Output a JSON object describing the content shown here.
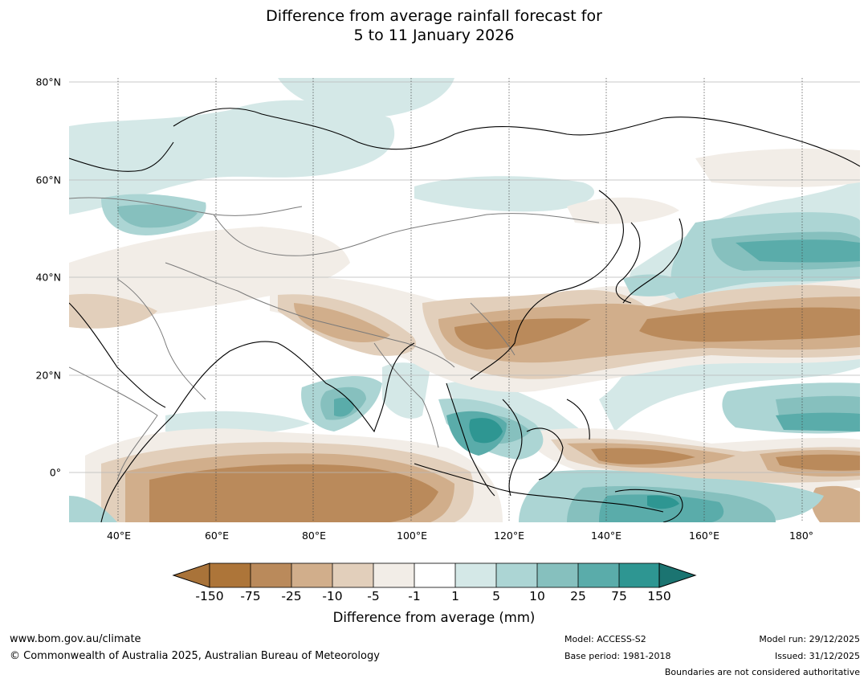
{
  "title": {
    "line1": "Difference from average rainfall forecast for",
    "line2": "5 to 11 January 2026"
  },
  "map": {
    "lon_range": [
      30,
      191
    ],
    "lat_range": [
      -10,
      81
    ],
    "lat_labels": [
      "80°N",
      "60°N",
      "40°N",
      "20°N",
      "0°"
    ],
    "lon_labels": [
      "40°E",
      "60°E",
      "80°E",
      "100°E",
      "120°E",
      "140°E",
      "160°E",
      "180°"
    ],
    "features": [
      {
        "category": -75,
        "label": "dry-equatorial-indian-ocean"
      },
      {
        "category": -75,
        "label": "dry-southern-china"
      },
      {
        "category": -75,
        "label": "dry-north-pacific-band"
      },
      {
        "category": -75,
        "label": "dry-equatorial-pacific"
      },
      {
        "category": 25,
        "label": "wet-bay-of-bengal"
      },
      {
        "category": 75,
        "label": "wet-south-china-sea"
      },
      {
        "category": 75,
        "label": "wet-maritime-continent-south"
      },
      {
        "category": 25,
        "label": "wet-north-pacific"
      },
      {
        "category": 10,
        "label": "wet-black-sea-region"
      }
    ]
  },
  "colorbar": {
    "ticks": [
      "-150",
      "-75",
      "-25",
      "-10",
      "-5",
      "-1",
      "1",
      "5",
      "10",
      "25",
      "75",
      "150"
    ],
    "colors": [
      "#a97339",
      "#ba8a5b",
      "#d1ae8b",
      "#e2cfbb",
      "#f2ede7",
      "#ffffff",
      "#d4e8e7",
      "#acd5d4",
      "#86c0be",
      "#5aacaa",
      "#2e9692",
      "#1b7471"
    ],
    "label": "Difference from average (mm)"
  },
  "footer": {
    "website": "www.bom.gov.au/climate",
    "copyright": "© Commonwealth of Australia 2025, Australian Bureau of Meteorology",
    "model": "Model: ACCESS-S2",
    "base_period": "Base period: 1981-2018",
    "model_run": "Model run: 29/12/2025",
    "issued": "Issued: 31/12/2025",
    "disclaimer": "Boundaries are not considered authoritative"
  }
}
